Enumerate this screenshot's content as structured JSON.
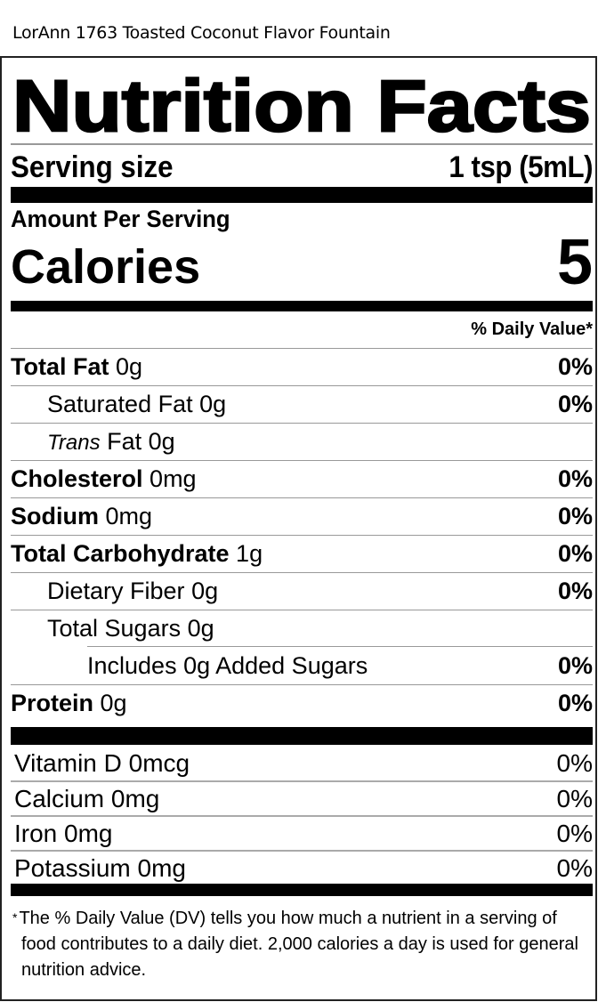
{
  "product_name": "LorAnn 1763 Toasted Coconut Flavor Fountain",
  "title": "Nutrition Facts",
  "serving": {
    "label": "Serving size",
    "value": "1 tsp (5mL)"
  },
  "amount_per_serving": "Amount Per Serving",
  "calories": {
    "label": "Calories",
    "value": "5"
  },
  "daily_value_header": "% Daily Value*",
  "nutrients": [
    {
      "name": "Total Fat",
      "amount": "0g",
      "dv": "0%"
    },
    {
      "name": "Saturated Fat",
      "amount": "0g",
      "dv": "0%"
    },
    {
      "name": "Trans",
      "name_rest": "Fat",
      "amount": "0g",
      "dv": ""
    },
    {
      "name": "Cholesterol",
      "amount": "0mg",
      "dv": "0%"
    },
    {
      "name": "Sodium",
      "amount": "0mg",
      "dv": "0%"
    },
    {
      "name": "Total Carbohydrate",
      "amount": "1g",
      "dv": "0%"
    },
    {
      "name": "Dietary Fiber",
      "amount": "0g",
      "dv": "0%"
    },
    {
      "name": "Total Sugars",
      "amount": "0g",
      "dv": ""
    },
    {
      "name": "Includes 0g Added Sugars",
      "amount": "",
      "dv": "0%"
    },
    {
      "name": "Protein",
      "amount": "0g",
      "dv": "0%"
    }
  ],
  "vitamins": [
    {
      "label": "Vitamin D 0mcg",
      "dv": "0%"
    },
    {
      "label": "Calcium 0mg",
      "dv": "0%"
    },
    {
      "label": "Iron 0mg",
      "dv": "0%"
    },
    {
      "label": "Potassium 0mg",
      "dv": "0%"
    }
  ],
  "footnote": {
    "star": "*",
    "text": "The % Daily Value (DV) tells you how much a nutrient in a serving of food contributes to a daily diet. 2,000 calories a day is used for general nutrition advice."
  }
}
